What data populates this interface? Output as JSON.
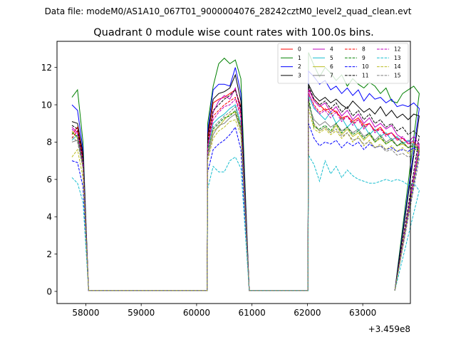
{
  "figure": {
    "suptitle": "Data file: modeM0/AS1A10_067T01_9000004076_28242cztM0_level2_quad_clean.evt"
  },
  "chart_data": {
    "type": "line",
    "title": "Quadrant 0 module wise count rates with 100.0s bins.",
    "xlabel": "",
    "ylabel": "",
    "x_offset_label": "+3.459e8",
    "xlim": [
      57480,
      63860
    ],
    "ylim": [
      -0.65,
      13.4
    ],
    "xticks": [
      58000,
      59000,
      60000,
      61000,
      62000,
      63000
    ],
    "xtick_labels": [
      "58000",
      "59000",
      "60000",
      "61000",
      "62000",
      "63000"
    ],
    "yticks": [
      0,
      2,
      4,
      6,
      8,
      10,
      12
    ],
    "ytick_labels": [
      "0",
      "2",
      "4",
      "6",
      "8",
      "10",
      "12"
    ],
    "legend_position": "upper-right",
    "legend_columns": 4,
    "gaps": [
      [
        58050,
        60190
      ],
      [
        60960,
        62010
      ]
    ],
    "bin_starts": [
      57750,
      60200,
      62020
    ],
    "segment_ends": [
      58050,
      60950,
      63580
    ],
    "series": [
      {
        "name": "0",
        "color": "#ff0000",
        "dash": "solid",
        "values": [
          8.4,
          8.8,
          7.2,
          0.05,
          8.2,
          10.1,
          10.3,
          10.4,
          10.6,
          10.8,
          9.9,
          0.05,
          10.8,
          10.3,
          10.0,
          9.7,
          9.8,
          9.6,
          9.3,
          9.4,
          9.1,
          9.3,
          8.9,
          9.0,
          8.6,
          8.8,
          8.4,
          8.5,
          8.2,
          8.0,
          7.7,
          7.9,
          7.6,
          0.05
        ]
      },
      {
        "name": "1",
        "color": "#008000",
        "dash": "solid",
        "values": [
          10.4,
          10.8,
          8.0,
          0.05,
          9.0,
          11.0,
          12.2,
          12.5,
          12.2,
          12.4,
          11.4,
          0.05,
          12.8,
          12.1,
          11.5,
          12.0,
          11.7,
          11.3,
          11.6,
          11.0,
          11.4,
          11.1,
          10.9,
          11.2,
          11.0,
          10.6,
          10.9,
          10.2,
          10.1,
          10.6,
          10.8,
          11.0,
          10.6,
          0.05
        ]
      },
      {
        "name": "2",
        "color": "#0000ff",
        "dash": "solid",
        "values": [
          10.0,
          9.7,
          7.6,
          0.05,
          8.6,
          10.8,
          11.1,
          11.1,
          11.0,
          12.0,
          10.6,
          0.05,
          11.8,
          11.5,
          11.1,
          11.3,
          10.8,
          11.0,
          10.6,
          10.9,
          10.5,
          10.8,
          10.2,
          10.6,
          10.3,
          10.4,
          10.1,
          10.3,
          9.9,
          10.0,
          9.9,
          10.1,
          9.8,
          0.05
        ]
      },
      {
        "name": "3",
        "color": "#000000",
        "dash": "solid",
        "values": [
          9.1,
          9.0,
          7.4,
          0.05,
          8.4,
          10.3,
          10.6,
          10.7,
          10.9,
          11.6,
          10.2,
          0.05,
          11.1,
          10.5,
          10.2,
          10.4,
          10.1,
          10.3,
          10.0,
          9.8,
          10.2,
          9.9,
          9.6,
          9.8,
          9.5,
          9.9,
          9.4,
          9.7,
          9.3,
          9.5,
          9.2,
          9.5,
          9.4,
          0.05
        ]
      },
      {
        "name": "4",
        "color": "#bf00bf",
        "dash": "solid",
        "values": [
          8.8,
          8.5,
          7.0,
          0.05,
          7.9,
          9.6,
          10.2,
          10.5,
          10.3,
          10.9,
          9.6,
          0.05,
          10.9,
          10.2,
          9.9,
          10.1,
          9.6,
          9.9,
          9.4,
          9.7,
          9.2,
          9.5,
          9.0,
          9.3,
          8.8,
          9.0,
          8.7,
          8.9,
          8.4,
          8.2,
          8.0,
          8.3,
          7.9,
          0.05
        ]
      },
      {
        "name": "5",
        "color": "#17becf",
        "dash": "solid",
        "values": [
          8.1,
          8.4,
          6.9,
          0.05,
          7.6,
          9.0,
          9.3,
          9.5,
          9.8,
          10.0,
          9.0,
          0.05,
          10.5,
          9.8,
          9.5,
          9.2,
          9.6,
          9.0,
          9.3,
          8.8,
          9.1,
          8.6,
          8.9,
          8.4,
          8.7,
          8.3,
          8.5,
          8.1,
          8.3,
          7.9,
          8.1,
          7.8,
          7.6,
          0.05
        ]
      },
      {
        "name": "6",
        "color": "#bcbd22",
        "dash": "solid",
        "values": [
          8.6,
          8.2,
          6.6,
          0.05,
          7.4,
          8.6,
          8.8,
          9.2,
          9.5,
          9.6,
          8.7,
          0.05,
          10.2,
          8.9,
          8.6,
          8.8,
          8.5,
          8.9,
          8.4,
          8.7,
          8.3,
          8.5,
          8.1,
          8.4,
          8.0,
          8.2,
          7.9,
          8.1,
          7.8,
          7.9,
          7.7,
          7.9,
          7.5,
          0.05
        ]
      },
      {
        "name": "7",
        "color": "#7f7f7f",
        "dash": "solid",
        "values": [
          8.0,
          8.1,
          6.8,
          0.05,
          7.2,
          8.4,
          8.9,
          9.0,
          9.3,
          9.5,
          8.6,
          0.05,
          10.0,
          9.2,
          8.9,
          9.1,
          8.8,
          9.0,
          8.6,
          8.8,
          8.5,
          8.7,
          8.3,
          8.5,
          8.1,
          8.4,
          8.0,
          8.2,
          7.8,
          8.0,
          7.7,
          7.9,
          7.6,
          0.05
        ]
      },
      {
        "name": "8",
        "color": "#ff0000",
        "dash": "dashed",
        "values": [
          8.2,
          8.6,
          7.0,
          0.05,
          7.8,
          9.4,
          9.7,
          10.0,
          10.2,
          10.4,
          9.5,
          0.05,
          10.6,
          10.0,
          9.6,
          9.8,
          9.5,
          9.7,
          9.2,
          9.4,
          9.0,
          9.2,
          8.8,
          9.0,
          8.6,
          8.7,
          8.4,
          8.5,
          8.1,
          8.2,
          7.9,
          8.0,
          7.7,
          0.05
        ]
      },
      {
        "name": "9",
        "color": "#008000",
        "dash": "dashed",
        "values": [
          8.5,
          8.3,
          6.8,
          0.05,
          7.5,
          8.7,
          9.0,
          9.3,
          9.4,
          9.7,
          8.8,
          0.05,
          10.4,
          8.8,
          8.7,
          8.9,
          8.6,
          9.0,
          8.5,
          8.8,
          8.4,
          8.6,
          8.2,
          8.5,
          8.0,
          8.3,
          7.9,
          8.1,
          7.8,
          8.0,
          7.7,
          7.8,
          7.5,
          0.05
        ]
      },
      {
        "name": "10",
        "color": "#0000ff",
        "dash": "dashed",
        "values": [
          7.0,
          6.9,
          5.6,
          0.05,
          6.4,
          7.6,
          7.9,
          8.1,
          8.4,
          8.8,
          7.6,
          0.05,
          9.0,
          8.2,
          7.8,
          8.0,
          7.9,
          8.1,
          7.7,
          8.0,
          7.8,
          8.0,
          7.6,
          7.9,
          7.7,
          7.8,
          7.6,
          7.7,
          7.5,
          7.6,
          7.5,
          7.7,
          7.4,
          0.05
        ]
      },
      {
        "name": "11",
        "color": "#000000",
        "dash": "dashed",
        "values": [
          8.9,
          8.7,
          7.1,
          0.05,
          8.0,
          9.7,
          10.0,
          10.3,
          10.5,
          10.8,
          9.8,
          0.05,
          11.0,
          10.3,
          10.0,
          10.2,
          9.8,
          10.1,
          9.6,
          9.9,
          9.4,
          9.7,
          9.2,
          9.5,
          9.0,
          9.2,
          8.8,
          9.0,
          8.6,
          8.8,
          8.4,
          8.6,
          8.3,
          0.05
        ]
      },
      {
        "name": "12",
        "color": "#bf00bf",
        "dash": "dashed",
        "values": [
          8.7,
          8.4,
          6.9,
          0.05,
          7.7,
          9.2,
          9.6,
          9.9,
          10.0,
          10.3,
          9.3,
          0.05,
          10.7,
          9.9,
          9.5,
          9.7,
          9.3,
          9.6,
          9.1,
          9.4,
          8.9,
          9.2,
          8.7,
          9.0,
          8.5,
          8.7,
          8.3,
          8.5,
          8.1,
          8.3,
          7.9,
          8.1,
          7.8,
          0.05
        ]
      },
      {
        "name": "13",
        "color": "#17becf",
        "dash": "dashed",
        "values": [
          6.1,
          5.8,
          4.8,
          0.05,
          5.5,
          6.7,
          6.4,
          6.4,
          7.0,
          7.2,
          6.6,
          0.05,
          7.3,
          6.8,
          5.9,
          7.0,
          6.3,
          6.7,
          6.1,
          6.5,
          6.2,
          6.0,
          5.9,
          5.8,
          5.8,
          5.9,
          6.0,
          5.9,
          6.0,
          5.9,
          5.7,
          5.8,
          5.4,
          0.05
        ]
      },
      {
        "name": "14",
        "color": "#bcbd22",
        "dash": "dashed",
        "values": [
          7.2,
          7.6,
          6.1,
          0.05,
          7.0,
          8.2,
          8.6,
          8.8,
          9.1,
          9.2,
          8.4,
          0.05,
          9.8,
          8.7,
          8.5,
          8.7,
          8.4,
          8.6,
          8.2,
          8.5,
          8.0,
          8.3,
          7.8,
          8.1,
          7.7,
          7.9,
          7.6,
          7.8,
          7.5,
          7.7,
          7.4,
          7.6,
          7.5,
          0.05
        ]
      },
      {
        "name": "15",
        "color": "#7f7f7f",
        "dash": "dashed",
        "values": [
          8.3,
          8.0,
          6.6,
          0.05,
          7.3,
          8.8,
          9.1,
          9.4,
          9.6,
          9.9,
          8.9,
          0.05,
          10.1,
          9.0,
          8.6,
          8.8,
          8.5,
          8.7,
          8.3,
          8.5,
          8.1,
          8.2,
          7.9,
          8.0,
          7.7,
          7.8,
          7.5,
          7.6,
          7.3,
          7.4,
          7.2,
          7.3,
          7.1,
          0.05
        ]
      }
    ]
  }
}
